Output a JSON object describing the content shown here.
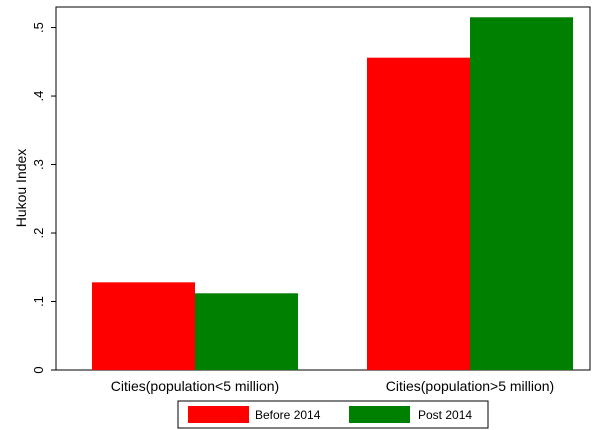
{
  "chart_data": {
    "type": "bar",
    "title": "",
    "xlabel": "",
    "ylabel": "Hukou Index",
    "ylim": [
      0,
      0.53
    ],
    "yticks": [
      0,
      0.1,
      0.2,
      0.3,
      0.4,
      0.5
    ],
    "ytick_labels": [
      "0",
      ".1",
      ".2",
      ".3",
      ".4",
      ".5"
    ],
    "grid": false,
    "legend_position": "bottom",
    "categories": [
      "Cities(population<5 million)",
      "Cities(population>5 million)"
    ],
    "series": [
      {
        "name": "Before 2014",
        "color": "#ff0000",
        "values": [
          0.128,
          0.456
        ]
      },
      {
        "name": "Post 2014",
        "color": "#008000",
        "values": [
          0.112,
          0.515
        ]
      }
    ]
  }
}
